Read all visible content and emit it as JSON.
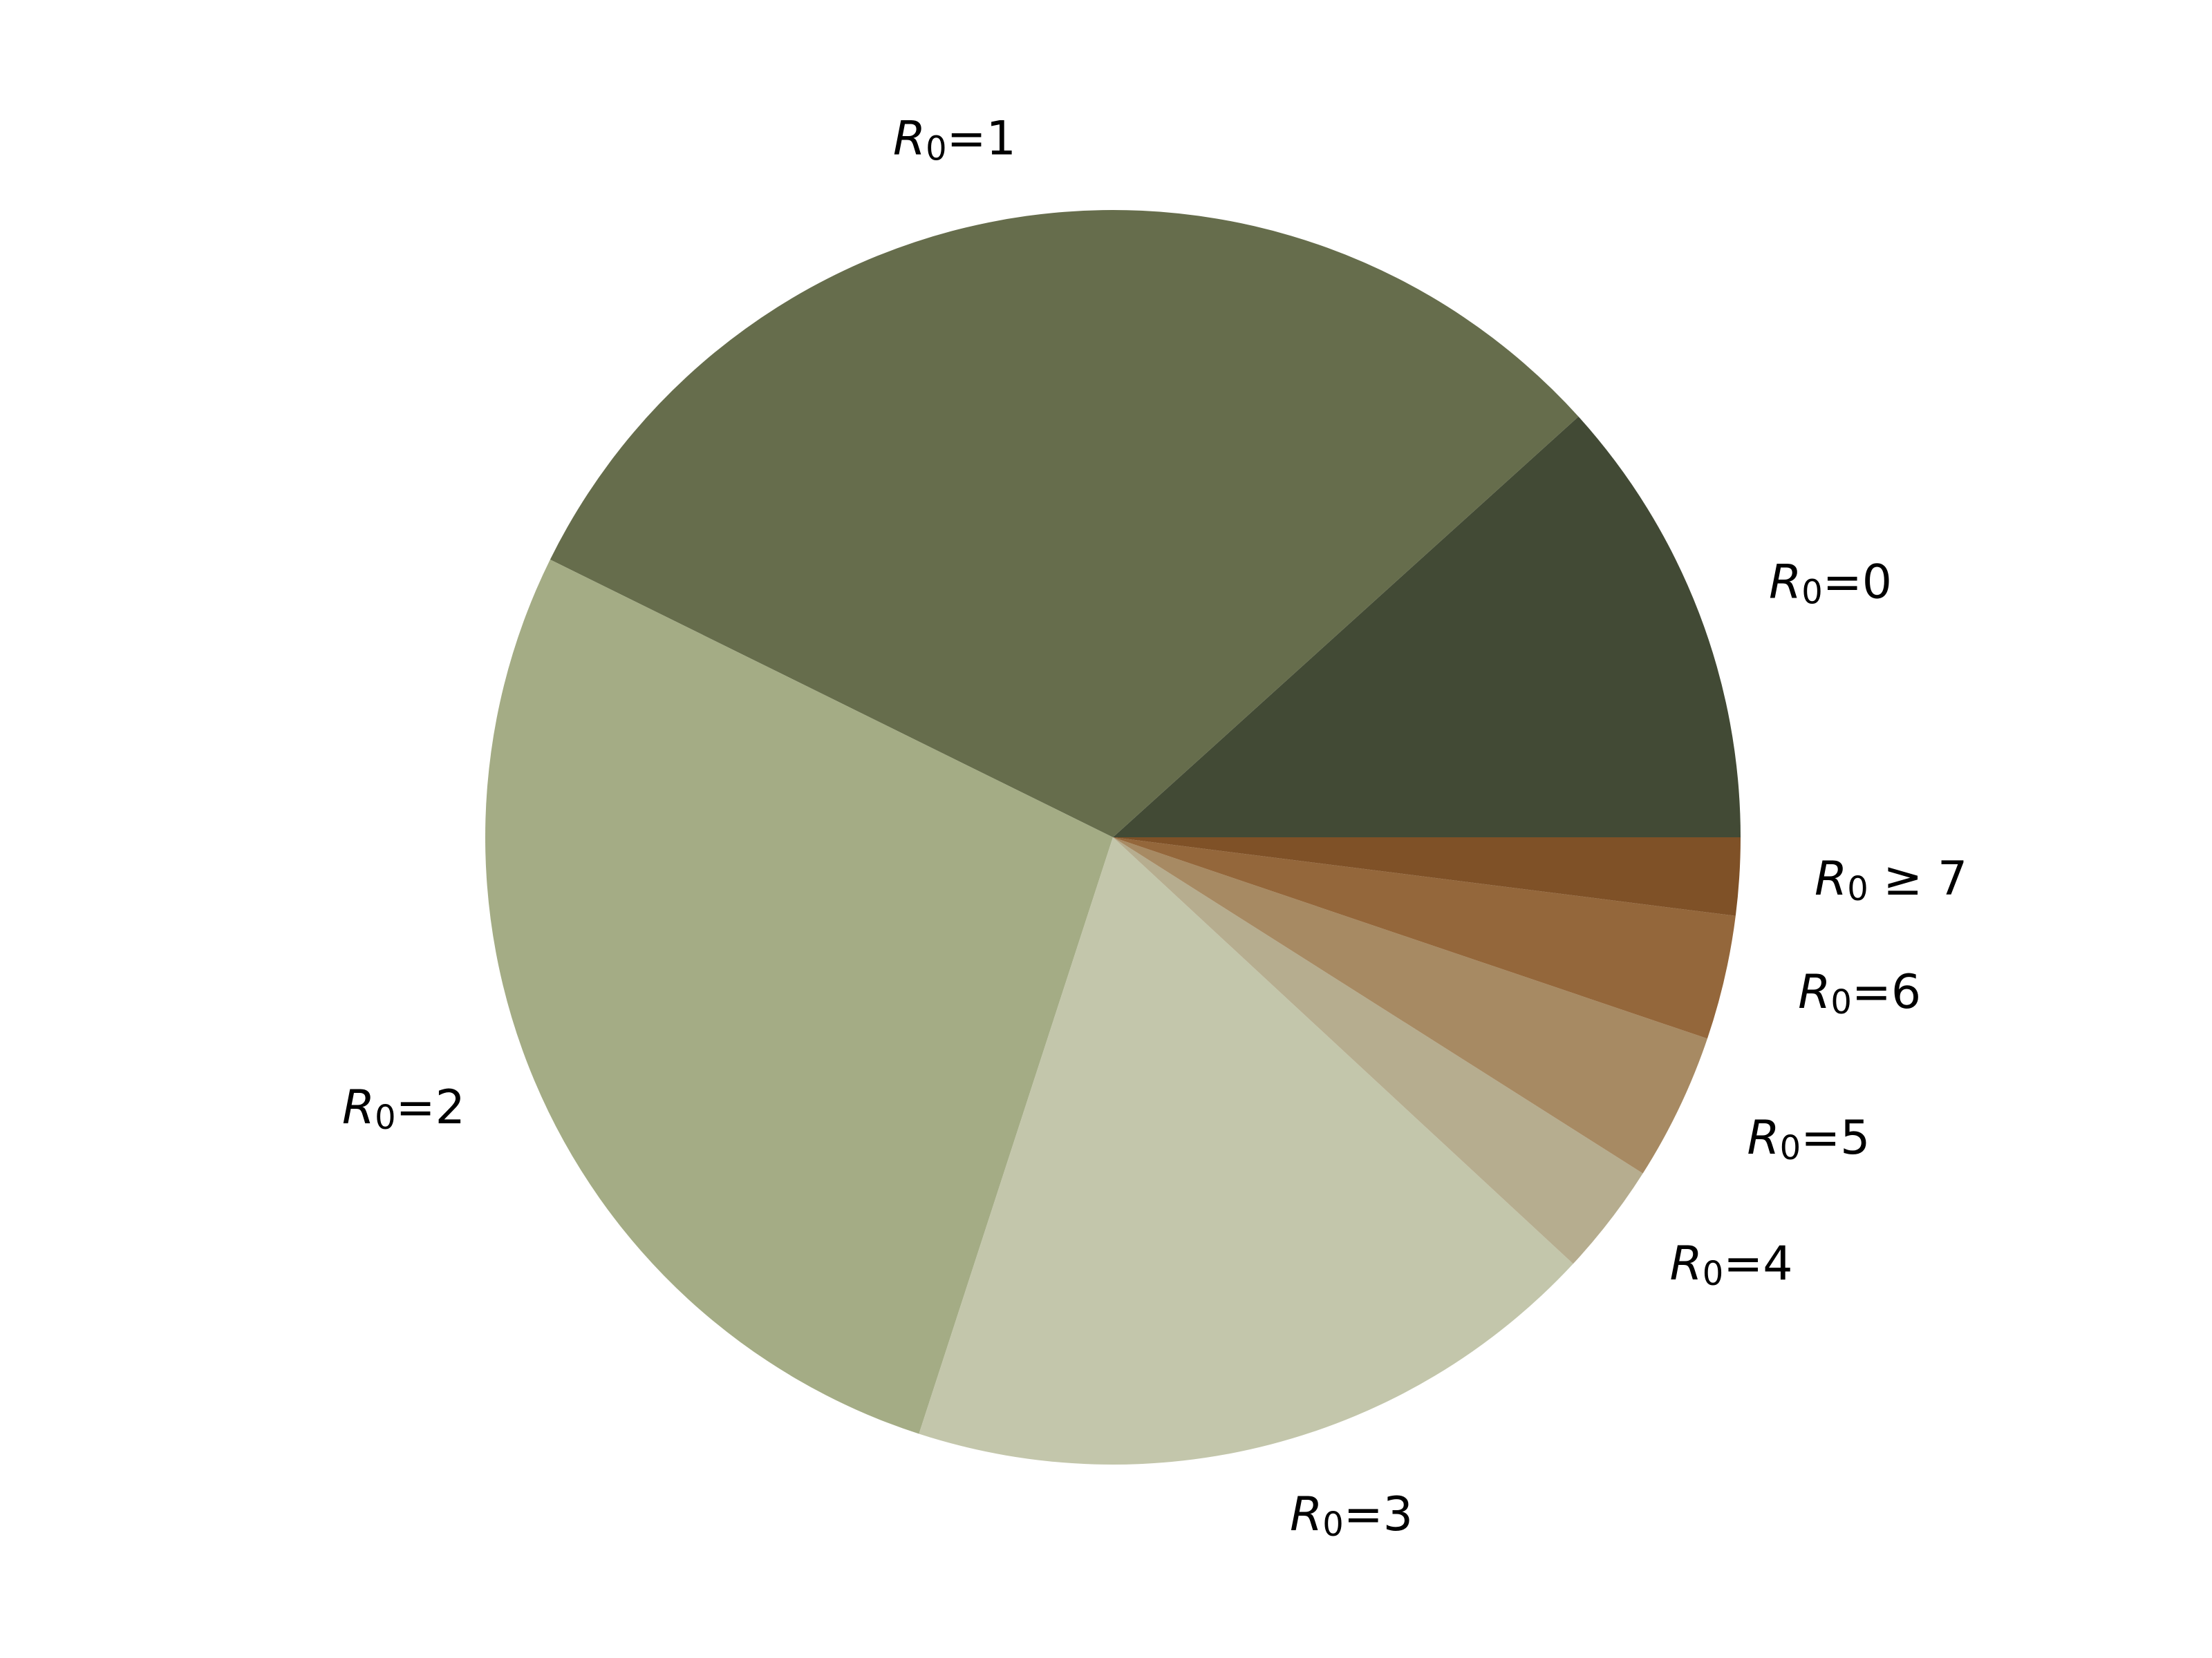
{
  "chart_data": {
    "type": "pie",
    "start_angle_deg": 0,
    "direction": "counterclockwise",
    "slices": [
      {
        "symbol": "R",
        "subscript": "0",
        "suffix": "=0",
        "value": 11.7,
        "color": "#424a35"
      },
      {
        "symbol": "R",
        "subscript": "0",
        "suffix": "=1",
        "value": 31.0,
        "color": "#666d4c"
      },
      {
        "symbol": "R",
        "subscript": "0",
        "suffix": "=2",
        "value": 27.3,
        "color": "#a4ac85"
      },
      {
        "symbol": "R",
        "subscript": "0",
        "suffix": "=3",
        "value": 18.1,
        "color": "#c3c6ab"
      },
      {
        "symbol": "R",
        "subscript": "0",
        "suffix": "=4",
        "value": 2.9,
        "color": "#b6ad8f"
      },
      {
        "symbol": "R",
        "subscript": "0",
        "suffix": "=5",
        "value": 3.8,
        "color": "#a78a63"
      },
      {
        "symbol": "R",
        "subscript": "0",
        "suffix": "=6",
        "value": 3.2,
        "color": "#94673b"
      },
      {
        "symbol": "R",
        "subscript": "0",
        "suffix": " ≥ 7",
        "value": 2.0,
        "color": "#7f5127"
      }
    ]
  }
}
